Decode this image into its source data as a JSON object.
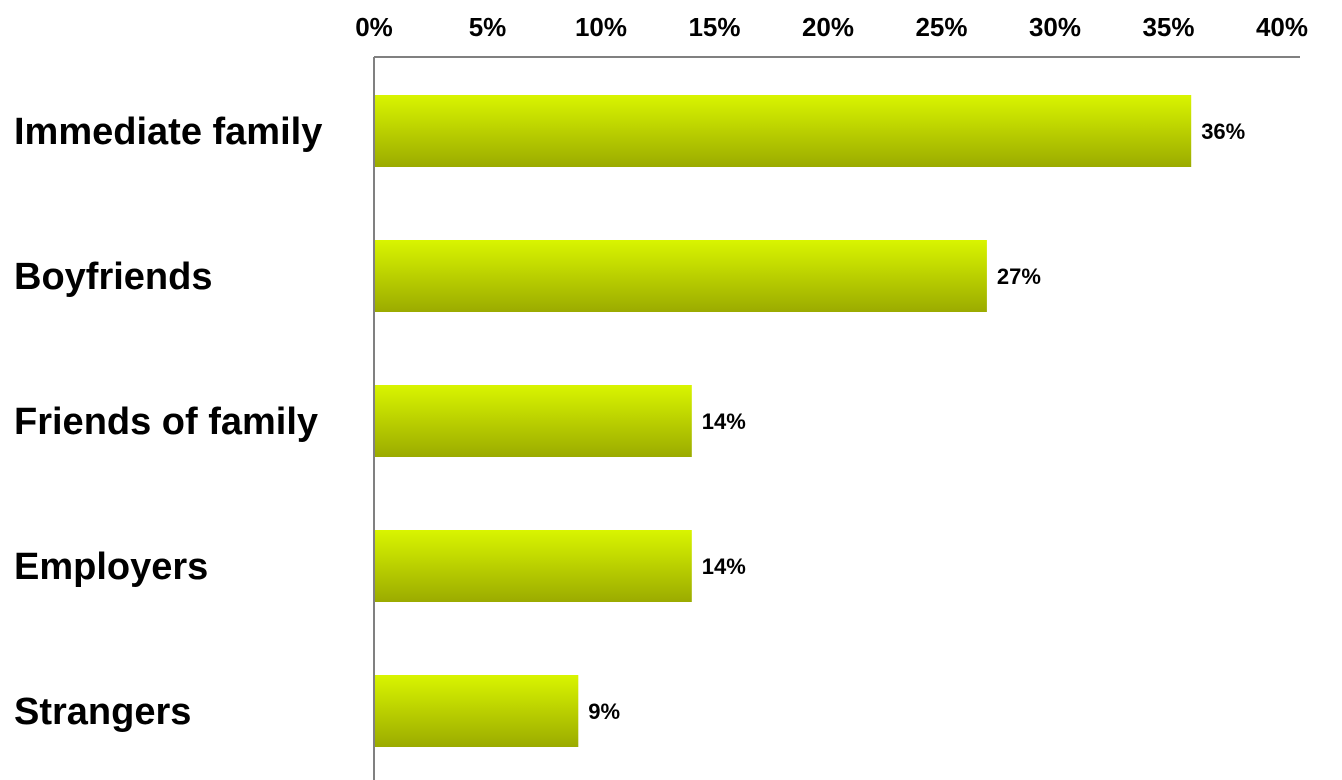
{
  "chart_data": {
    "type": "bar",
    "orientation": "horizontal",
    "title": "",
    "xlabel": "",
    "ylabel": "",
    "categories": [
      "Immediate family",
      "Boyfriends",
      "Friends of family",
      "Employers",
      "Strangers"
    ],
    "values": [
      36,
      27,
      14,
      14,
      9
    ],
    "value_labels": [
      "36%",
      "27%",
      "14%",
      "14%",
      "9%"
    ],
    "value_unit": "%",
    "xlim": [
      0,
      40
    ],
    "x_ticks": [
      0,
      5,
      10,
      15,
      20,
      25,
      30,
      35,
      40
    ],
    "x_tick_labels": [
      "0%",
      "5%",
      "10%",
      "15%",
      "20%",
      "25%",
      "30%",
      "35%",
      "40%"
    ],
    "x_axis_position": "top",
    "grid": false,
    "legend": "none",
    "bar_color_top": "#d9f500",
    "bar_color_bottom": "#9bab00"
  }
}
